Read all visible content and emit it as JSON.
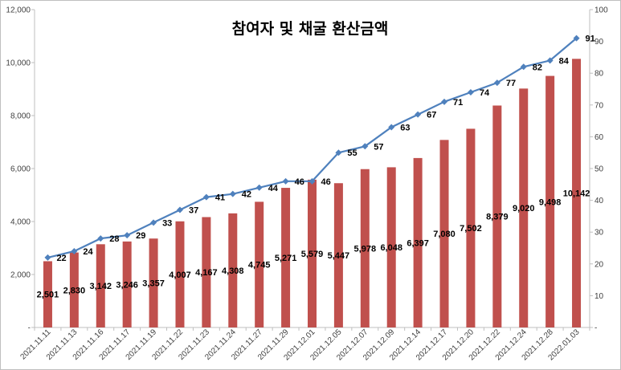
{
  "chart_data": {
    "type": "bar+line",
    "title": "참여자 및 채굴 환산금액",
    "categories": [
      "2021.11.11",
      "2021.11.13",
      "2021.11.16",
      "2021.11.17",
      "2021.11.19",
      "2021.11.22",
      "2021.11.23",
      "2021.11.24",
      "2021.11.27",
      "2021.11.29",
      "2021.12.01",
      "2021.12.05",
      "2021.12.07",
      "2021.12.09",
      "2021.12.14",
      "2021.12.17",
      "2021.12.20",
      "2021.12.22",
      "2021.12.24",
      "2021.12.28",
      "2022.01.03"
    ],
    "series": [
      {
        "type": "bar",
        "axis": "left",
        "color": "#c0504d",
        "values": [
          2501,
          2830,
          3142,
          3246,
          3357,
          4007,
          4167,
          4308,
          4745,
          5271,
          5579,
          5447,
          5978,
          6048,
          6397,
          7080,
          7502,
          8379,
          9020,
          9498,
          10142
        ],
        "labels": [
          "2,501",
          "2,830",
          "3,142",
          "3,246",
          "3,357",
          "4,007",
          "4,167",
          "4,308",
          "4,745",
          "5,271",
          "5,579",
          "5,447",
          "5,978",
          "6,048",
          "6,397",
          "7,080",
          "7,502",
          "8,379",
          "9,020",
          "9,498",
          "10,142"
        ]
      },
      {
        "type": "line",
        "axis": "right",
        "color": "#4f81bd",
        "marker": "diamond",
        "values": [
          22,
          24,
          28,
          29,
          33,
          37,
          41,
          42,
          44,
          46,
          46,
          55,
          57,
          63,
          67,
          71,
          74,
          77,
          82,
          84,
          91
        ],
        "labels": [
          "22",
          "24",
          "28",
          "29",
          "33",
          "37",
          "41",
          "42",
          "44",
          "46",
          "46",
          "55",
          "57",
          "63",
          "67",
          "71",
          "74",
          "77",
          "82",
          "84",
          "91"
        ]
      }
    ],
    "y_left": {
      "range": [
        0,
        12000
      ],
      "ticks": [
        "-",
        "2,000",
        "4,000",
        "6,000",
        "8,000",
        "10,000",
        "12,000"
      ]
    },
    "y_right": {
      "range": [
        0,
        100
      ],
      "ticks": [
        "-",
        "10",
        "20",
        "30",
        "40",
        "50",
        "60",
        "70",
        "80",
        "90",
        "100"
      ]
    },
    "grid": false,
    "legend": "none"
  }
}
